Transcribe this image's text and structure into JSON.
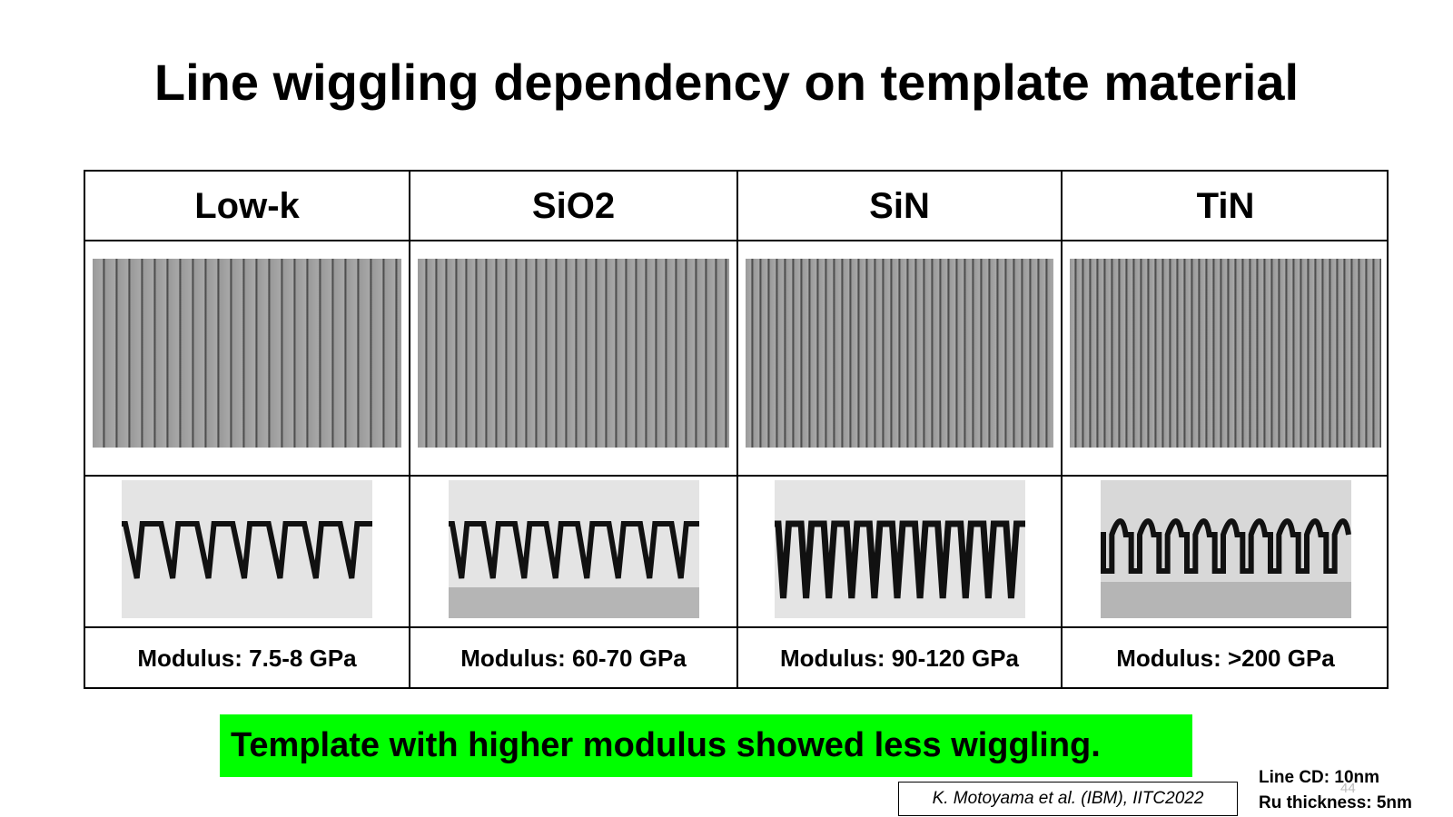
{
  "title": "Line wiggling dependency on template material",
  "table": {
    "headers": [
      "Low-k",
      "SiO2",
      "SiN",
      "TiN"
    ],
    "rows": [
      [
        "Modulus: 7.5-8 GPa",
        "Modulus: 60-70 GPa",
        "Modulus: 90-120 GPa",
        "Modulus: >200 GPa"
      ]
    ]
  },
  "conclusion": "Template with higher modulus showed less wiggling.",
  "citation": "K. Motoyama et al. (IBM), IITC2022",
  "notes": [
    "Line CD: 10nm",
    "Ru thickness: 5nm"
  ],
  "page_number": "44"
}
